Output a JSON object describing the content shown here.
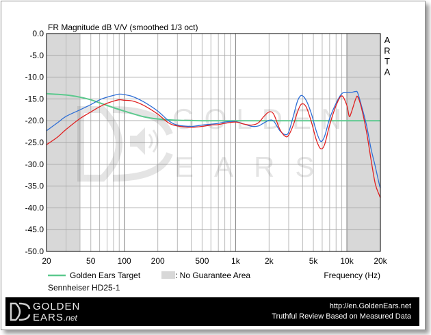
{
  "chart_data": {
    "type": "line",
    "title": "FR Magnitude dB V/V (smoothed 1/3 oct)",
    "xlabel": "Frequency (Hz)",
    "ylabel": "",
    "x_scale": "log",
    "xlim": [
      20,
      20000
    ],
    "ylim": [
      -50,
      0
    ],
    "grid": true,
    "x_ticks": [
      {
        "value": 20,
        "label": "20"
      },
      {
        "value": 50,
        "label": "50"
      },
      {
        "value": 100,
        "label": "100"
      },
      {
        "value": 200,
        "label": "200"
      },
      {
        "value": 500,
        "label": "500"
      },
      {
        "value": 1000,
        "label": "1k"
      },
      {
        "value": 2000,
        "label": "2k"
      },
      {
        "value": 5000,
        "label": "5k"
      },
      {
        "value": 10000,
        "label": "10k"
      },
      {
        "value": 20000,
        "label": "20k"
      }
    ],
    "y_ticks": [
      {
        "value": 0,
        "label": "0.0"
      },
      {
        "value": -5,
        "label": "-5.0"
      },
      {
        "value": -10,
        "label": "-10.0"
      },
      {
        "value": -15,
        "label": "-15.0"
      },
      {
        "value": -20,
        "label": "-20.0"
      },
      {
        "value": -25,
        "label": "-25.0"
      },
      {
        "value": -30,
        "label": "-30.0"
      },
      {
        "value": -35,
        "label": "-35.0"
      },
      {
        "value": -40,
        "label": "-40.0"
      },
      {
        "value": -45,
        "label": "-45.0"
      },
      {
        "value": -50,
        "label": "-50.0"
      }
    ],
    "shaded_regions": [
      {
        "from": 20,
        "to": 40
      },
      {
        "from": 10000,
        "to": 20000
      }
    ],
    "series": [
      {
        "color": "#2f6fd6",
        "points": [
          [
            20,
            -22.3
          ],
          [
            25,
            -20.5
          ],
          [
            30,
            -19
          ],
          [
            40,
            -17.5
          ],
          [
            50,
            -16.3
          ],
          [
            60,
            -15.2
          ],
          [
            70,
            -14.6
          ],
          [
            80,
            -14.2
          ],
          [
            90,
            -13.9
          ],
          [
            100,
            -14
          ],
          [
            120,
            -14.5
          ],
          [
            150,
            -15.7
          ],
          [
            200,
            -17.8
          ],
          [
            250,
            -20
          ],
          [
            300,
            -21
          ],
          [
            400,
            -21.3
          ],
          [
            500,
            -21
          ],
          [
            600,
            -20.8
          ],
          [
            700,
            -20.6
          ],
          [
            800,
            -20.3
          ],
          [
            1000,
            -20.2
          ],
          [
            1200,
            -20.8
          ],
          [
            1400,
            -21.3
          ],
          [
            1600,
            -21.2
          ],
          [
            1800,
            -20.5
          ],
          [
            2000,
            -19.9
          ],
          [
            2200,
            -20.1
          ],
          [
            2500,
            -22.3
          ],
          [
            2800,
            -23.2
          ],
          [
            3000,
            -22.6
          ],
          [
            3300,
            -19
          ],
          [
            3600,
            -15.5
          ],
          [
            3900,
            -14.2
          ],
          [
            4300,
            -15.3
          ],
          [
            4800,
            -18.4
          ],
          [
            5300,
            -22.3
          ],
          [
            5800,
            -24.7
          ],
          [
            6300,
            -23.6
          ],
          [
            7000,
            -19.5
          ],
          [
            8000,
            -16
          ],
          [
            9000,
            -13.8
          ],
          [
            10000,
            -13.5
          ],
          [
            11000,
            -13.5
          ],
          [
            12000,
            -13.3
          ],
          [
            12500,
            -13.6
          ],
          [
            13500,
            -16.5
          ],
          [
            15000,
            -21
          ],
          [
            16500,
            -26.5
          ],
          [
            18000,
            -30.5
          ],
          [
            19500,
            -34.5
          ],
          [
            20000,
            -35.5
          ]
        ]
      },
      {
        "color": "#e02020",
        "points": [
          [
            20,
            -25.5
          ],
          [
            25,
            -23.8
          ],
          [
            30,
            -22
          ],
          [
            40,
            -19.5
          ],
          [
            50,
            -18
          ],
          [
            60,
            -16.8
          ],
          [
            70,
            -16
          ],
          [
            80,
            -15.5
          ],
          [
            90,
            -15.2
          ],
          [
            100,
            -15.3
          ],
          [
            120,
            -15.5
          ],
          [
            150,
            -16.5
          ],
          [
            200,
            -18.5
          ],
          [
            250,
            -20.5
          ],
          [
            300,
            -21.2
          ],
          [
            400,
            -21.5
          ],
          [
            500,
            -21.3
          ],
          [
            600,
            -21
          ],
          [
            700,
            -20.9
          ],
          [
            800,
            -20.6
          ],
          [
            1000,
            -20.3
          ],
          [
            1200,
            -20.8
          ],
          [
            1400,
            -21
          ],
          [
            1600,
            -20.5
          ],
          [
            1800,
            -19
          ],
          [
            2000,
            -18
          ],
          [
            2200,
            -18.5
          ],
          [
            2500,
            -22
          ],
          [
            2800,
            -23.6
          ],
          [
            3000,
            -23.3
          ],
          [
            3300,
            -21
          ],
          [
            3600,
            -18
          ],
          [
            3900,
            -16.2
          ],
          [
            4300,
            -16.8
          ],
          [
            4800,
            -20.3
          ],
          [
            5300,
            -24.3
          ],
          [
            5800,
            -26.4
          ],
          [
            6300,
            -25.5
          ],
          [
            7000,
            -21
          ],
          [
            8000,
            -16.5
          ],
          [
            9000,
            -14.3
          ],
          [
            10000,
            -16.5
          ],
          [
            10500,
            -19
          ],
          [
            11000,
            -18
          ],
          [
            12000,
            -15
          ],
          [
            12500,
            -14.5
          ],
          [
            13500,
            -17
          ],
          [
            15000,
            -22.5
          ],
          [
            16500,
            -29
          ],
          [
            18000,
            -34.5
          ],
          [
            19500,
            -37
          ],
          [
            20000,
            -37.7
          ]
        ]
      },
      {
        "name": "Golden Ears Target",
        "color": "#5cc98e",
        "points": [
          [
            20,
            -13.8
          ],
          [
            30,
            -14.1
          ],
          [
            40,
            -14.6
          ],
          [
            50,
            -15.2
          ],
          [
            60,
            -15.9
          ],
          [
            80,
            -17
          ],
          [
            100,
            -17.8
          ],
          [
            150,
            -19.1
          ],
          [
            200,
            -19.6
          ],
          [
            300,
            -19.9
          ],
          [
            500,
            -20
          ],
          [
            1000,
            -20
          ],
          [
            2000,
            -20
          ],
          [
            5000,
            -20
          ],
          [
            10000,
            -20
          ],
          [
            20000,
            -20
          ]
        ]
      }
    ],
    "legend": [
      {
        "label": "Golden Ears Target",
        "kind": "line",
        "color": "#5cc98e"
      },
      {
        "label": ": No Guarantee Area",
        "kind": "box",
        "color": "#d8d8d8"
      }
    ],
    "legend_placement": "bottom-left",
    "product": "Sennheiser HD25-1",
    "side_label": [
      "A",
      "R",
      "T",
      "A"
    ],
    "watermark": {
      "line1": "GOLDEN",
      "line2": "EARS"
    }
  },
  "footer": {
    "logo_line1": "GOLDEN",
    "logo_line2": "EARS",
    "logo_suffix": ".net",
    "url": "http://en.GoldenEars.net",
    "tagline": "Truthful Review Based on Measured Data"
  }
}
